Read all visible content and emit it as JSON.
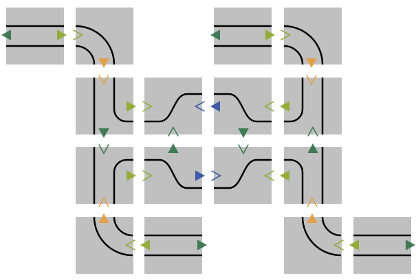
{
  "colors": {
    "background": "#ffffff",
    "tile": "#c0c0c0",
    "track": "#000000",
    "dark_green": "#3f7a55",
    "light_green": "#93ac3a",
    "orange": "#e2a04b",
    "blue": "#3d5ba6"
  },
  "legend_note": "",
  "tiles": [
    {
      "id": "A",
      "type": "straight-horizontal"
    },
    {
      "id": "B",
      "type": "curve-left-to-down"
    },
    {
      "id": "C",
      "type": "straight-horizontal"
    },
    {
      "id": "D",
      "type": "curve-left-to-down"
    },
    {
      "id": "E",
      "type": "curve-up-to-right"
    },
    {
      "id": "F",
      "type": "s-bend-up"
    },
    {
      "id": "G",
      "type": "s-bend-down"
    },
    {
      "id": "H",
      "type": "curve-left-to-up"
    },
    {
      "id": "I",
      "type": "curve-down-to-right"
    },
    {
      "id": "J",
      "type": "s-bend-down-right"
    },
    {
      "id": "K",
      "type": "s-bend-up-right"
    },
    {
      "id": "L",
      "type": "curve-left-to-down"
    },
    {
      "id": "M",
      "type": "curve-up-to-right"
    },
    {
      "id": "N",
      "type": "straight-horizontal"
    },
    {
      "id": "O",
      "type": "curve-up-to-right"
    },
    {
      "id": "P",
      "type": "straight-horizontal"
    }
  ],
  "markers": [
    {
      "id": "m1",
      "color": "dark_green",
      "dir": "left",
      "style": "filled"
    },
    {
      "id": "m2",
      "color": "light_green",
      "dir": "right",
      "style": "filled"
    },
    {
      "id": "m3",
      "color": "light_green",
      "dir": "right",
      "style": "open"
    },
    {
      "id": "m4",
      "color": "dark_green",
      "dir": "left",
      "style": "filled"
    },
    {
      "id": "m5",
      "color": "light_green",
      "dir": "right",
      "style": "filled"
    },
    {
      "id": "m6",
      "color": "light_green",
      "dir": "right",
      "style": "open"
    },
    {
      "id": "m7",
      "color": "orange",
      "dir": "down",
      "style": "filled"
    },
    {
      "id": "m8",
      "color": "orange",
      "dir": "down",
      "style": "open"
    },
    {
      "id": "m9",
      "color": "orange",
      "dir": "down",
      "style": "filled"
    },
    {
      "id": "m10",
      "color": "orange",
      "dir": "down",
      "style": "open"
    },
    {
      "id": "m11",
      "color": "light_green",
      "dir": "right",
      "style": "filled"
    },
    {
      "id": "m12",
      "color": "light_green",
      "dir": "right",
      "style": "open"
    },
    {
      "id": "m13",
      "color": "blue",
      "dir": "left",
      "style": "open"
    },
    {
      "id": "m14",
      "color": "blue",
      "dir": "left",
      "style": "filled"
    },
    {
      "id": "m15",
      "color": "light_green",
      "dir": "left",
      "style": "open"
    },
    {
      "id": "m16",
      "color": "light_green",
      "dir": "left",
      "style": "filled"
    },
    {
      "id": "m17",
      "color": "dark_green",
      "dir": "down",
      "style": "filled"
    },
    {
      "id": "m18",
      "color": "dark_green",
      "dir": "down",
      "style": "open"
    },
    {
      "id": "m19",
      "color": "dark_green",
      "dir": "up",
      "style": "open"
    },
    {
      "id": "m20",
      "color": "dark_green",
      "dir": "up",
      "style": "filled"
    },
    {
      "id": "m21",
      "color": "dark_green",
      "dir": "down",
      "style": "filled"
    },
    {
      "id": "m22",
      "color": "dark_green",
      "dir": "down",
      "style": "open"
    },
    {
      "id": "m23",
      "color": "dark_green",
      "dir": "up",
      "style": "open"
    },
    {
      "id": "m24",
      "color": "dark_green",
      "dir": "up",
      "style": "filled"
    },
    {
      "id": "m25",
      "color": "light_green",
      "dir": "right",
      "style": "filled"
    },
    {
      "id": "m26",
      "color": "light_green",
      "dir": "right",
      "style": "open"
    },
    {
      "id": "m27",
      "color": "blue",
      "dir": "right",
      "style": "filled"
    },
    {
      "id": "m28",
      "color": "blue",
      "dir": "right",
      "style": "open"
    },
    {
      "id": "m29",
      "color": "light_green",
      "dir": "left",
      "style": "open"
    },
    {
      "id": "m30",
      "color": "light_green",
      "dir": "left",
      "style": "filled"
    },
    {
      "id": "m31",
      "color": "orange",
      "dir": "up",
      "style": "open"
    },
    {
      "id": "m32",
      "color": "orange",
      "dir": "up",
      "style": "filled"
    },
    {
      "id": "m33",
      "color": "orange",
      "dir": "up",
      "style": "open"
    },
    {
      "id": "m34",
      "color": "orange",
      "dir": "up",
      "style": "filled"
    },
    {
      "id": "m35",
      "color": "light_green",
      "dir": "left",
      "style": "open"
    },
    {
      "id": "m36",
      "color": "light_green",
      "dir": "left",
      "style": "filled"
    },
    {
      "id": "m37",
      "color": "dark_green",
      "dir": "right",
      "style": "filled"
    },
    {
      "id": "m38",
      "color": "light_green",
      "dir": "left",
      "style": "open"
    },
    {
      "id": "m39",
      "color": "light_green",
      "dir": "left",
      "style": "filled"
    },
    {
      "id": "m40",
      "color": "dark_green",
      "dir": "right",
      "style": "filled"
    }
  ]
}
